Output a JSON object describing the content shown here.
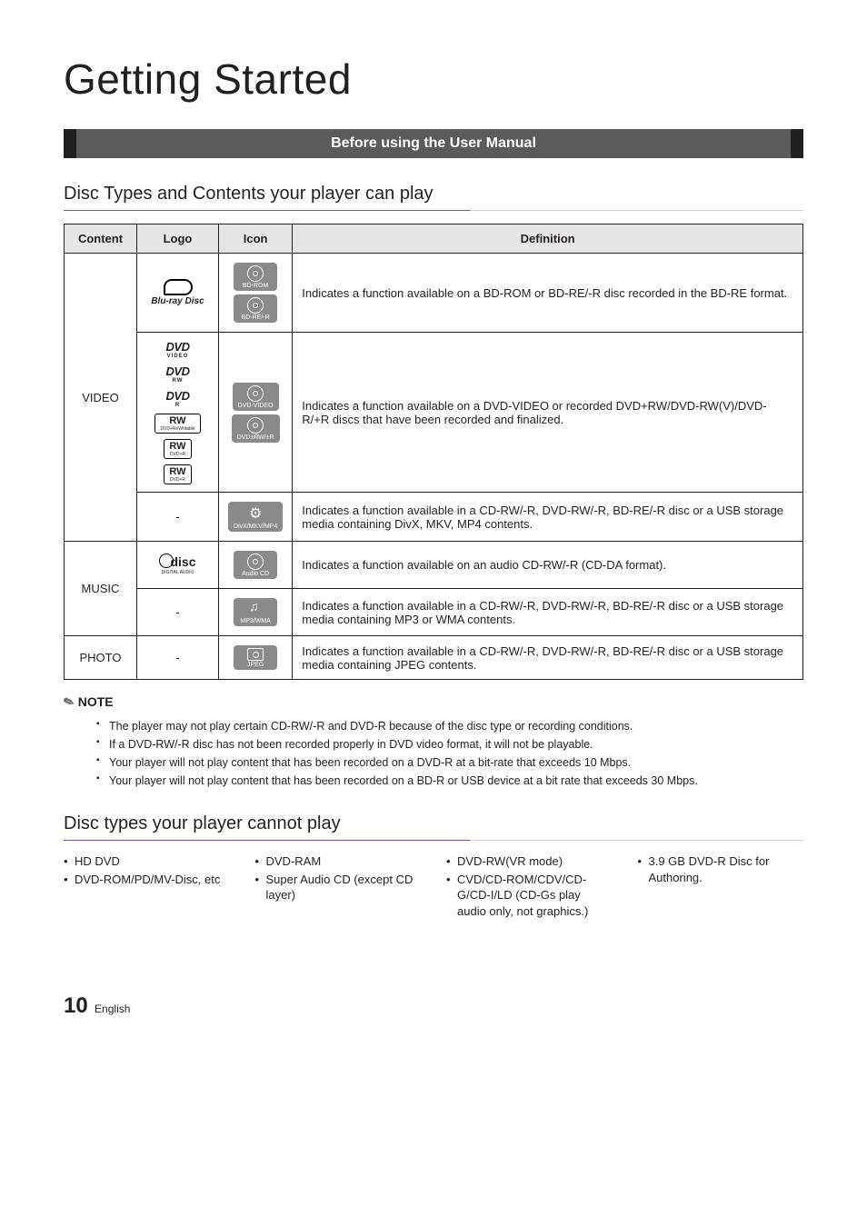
{
  "page_title": "Getting Started",
  "banner": "Before using the User Manual",
  "section1_title": "Disc Types and Contents your player can play",
  "table": {
    "headers": {
      "content": "Content",
      "logo": "Logo",
      "icon": "Icon",
      "definition": "Definition"
    },
    "rows": {
      "video": {
        "label": "VIDEO",
        "r1": {
          "logo_label": "Blu-ray Disc",
          "icon_labels": [
            "BD-ROM",
            "BD-RE/-R"
          ],
          "definition": "Indicates a function available on a BD-ROM or BD-RE/-R disc recorded in the BD-RE format."
        },
        "r2": {
          "logo_subs": [
            "VIDEO",
            "RW",
            "R"
          ],
          "rw_subs": [
            "DVD+ReWritable",
            "DVD+R",
            "DVD+R"
          ],
          "icon_labels": [
            "DVD-VIDEO",
            "DVD±RW/±R"
          ],
          "definition": "Indicates a function available on a DVD-VIDEO or recorded DVD+RW/DVD-RW(V)/DVD-R/+R discs that have been recorded and finalized."
        },
        "r3": {
          "logo": "-",
          "icon_label": "DivX/MKV/MP4",
          "definition": "Indicates a function available in a CD-RW/-R, DVD-RW/-R, BD-RE/-R disc or a USB storage media containing DivX, MKV, MP4 contents."
        }
      },
      "music": {
        "label": "MUSIC",
        "r1": {
          "logo_small": "DIGITAL AUDIO",
          "icon_label": "Audio CD",
          "definition": "Indicates a function available on an audio CD-RW/-R (CD-DA format)."
        },
        "r2": {
          "logo": "-",
          "icon_label": "MP3/WMA",
          "definition": "Indicates a function available in a CD-RW/-R, DVD-RW/-R, BD-RE/-R disc or a USB storage media containing MP3 or WMA contents."
        }
      },
      "photo": {
        "label": "PHOTO",
        "r1": {
          "logo": "-",
          "icon_label": "JPEG",
          "definition": "Indicates a function available in a CD-RW/-R, DVD-RW/-R, BD-RE/-R disc or a USB storage media containing JPEG contents."
        }
      }
    }
  },
  "note": {
    "heading": "NOTE",
    "items": [
      "The player may not play certain CD-RW/-R and DVD-R because of the disc type or recording conditions.",
      "If a DVD-RW/-R disc has not been recorded properly in DVD video format, it will not be playable.",
      "Your player will not play content that has been recorded on a DVD-R at a bit-rate that exceeds 10 Mbps.",
      "Your player will not play content that has been recorded on a BD-R or USB device at a bit rate that exceeds 30 Mbps."
    ]
  },
  "section2_title": "Disc types your player cannot play",
  "cannot_play": {
    "col1": [
      "HD DVD",
      "DVD-ROM/PD/MV-Disc, etc"
    ],
    "col2": [
      "DVD-RAM",
      "Super Audio CD (except CD layer)"
    ],
    "col3": [
      "DVD-RW(VR mode)",
      "CVD/CD-ROM/CDV/CD-G/CD-I/LD (CD-Gs play audio only, not graphics.)"
    ],
    "col4": [
      "3.9 GB DVD-R Disc for Authoring."
    ]
  },
  "footer": {
    "page_num": "10",
    "lang": "English"
  },
  "colors": {
    "banner_bg": "#5b5b5b",
    "banner_border": "#231f20",
    "subsection_accent": "#7a56a0",
    "icon_badge_bg": "#8a8a8a",
    "table_header_bg": "#e6e6e6",
    "text": "#231f20"
  }
}
